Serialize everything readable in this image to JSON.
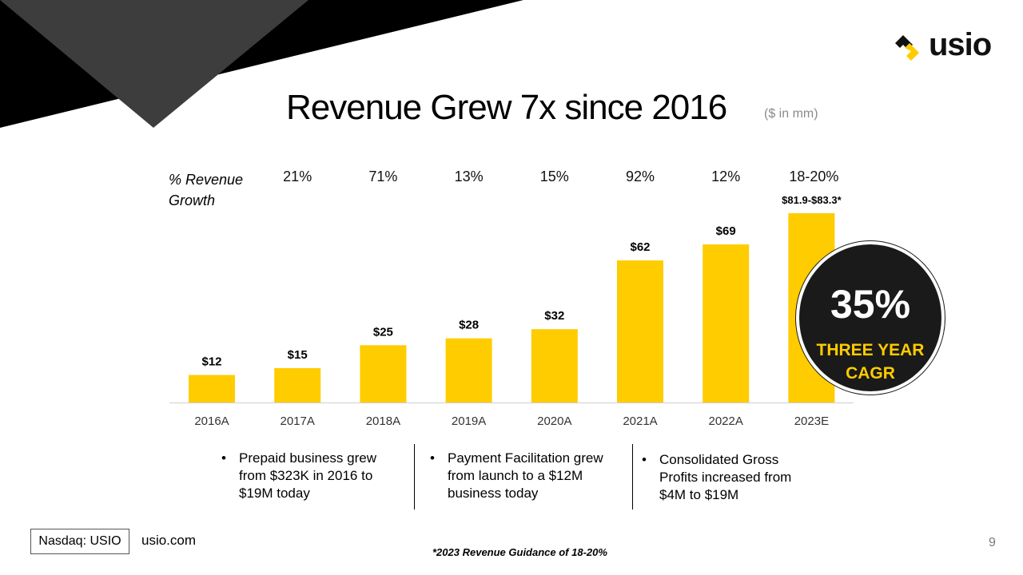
{
  "slide": {
    "title": "Revenue Grew 7x since 2016",
    "unit_note": "($ in mm)",
    "growth_label": "% Revenue Growth",
    "page_number": "9"
  },
  "brand": {
    "logo_text": "usio",
    "accent_color": "#FFCC00",
    "dark_color": "#1a1a1a"
  },
  "chart_data": {
    "type": "bar",
    "title": "Revenue Grew 7x since 2016",
    "ylabel": "($ in mm)",
    "xlabel": "",
    "categories": [
      "2016A",
      "2017A",
      "2018A",
      "2019A",
      "2020A",
      "2021A",
      "2022A",
      "2023E"
    ],
    "values": [
      12,
      15,
      25,
      28,
      32,
      62,
      69,
      82.6
    ],
    "value_labels": [
      "$12",
      "$15",
      "$25",
      "$28",
      "$32",
      "$62",
      "$69",
      "$81.9-$83.3*"
    ],
    "growth_rates": [
      "",
      "21%",
      "71%",
      "13%",
      "15%",
      "92%",
      "12%",
      "18-20%"
    ],
    "ylim": [
      0,
      82.6
    ],
    "grid": false,
    "legend": "none",
    "bar_color": "#FFCC00"
  },
  "cagr": {
    "value": "35%",
    "label": "THREE YEAR CAGR"
  },
  "notes": [
    "Prepaid business grew from $323K in 2016 to $19M today",
    "Payment Facilitation grew from launch to a $12M business today",
    "Consolidated Gross Profits increased from $4M to $19M"
  ],
  "footer": {
    "ticker": "Nasdaq: USIO",
    "website": "usio.com",
    "footnote": "*2023 Revenue Guidance of 18-20%"
  }
}
